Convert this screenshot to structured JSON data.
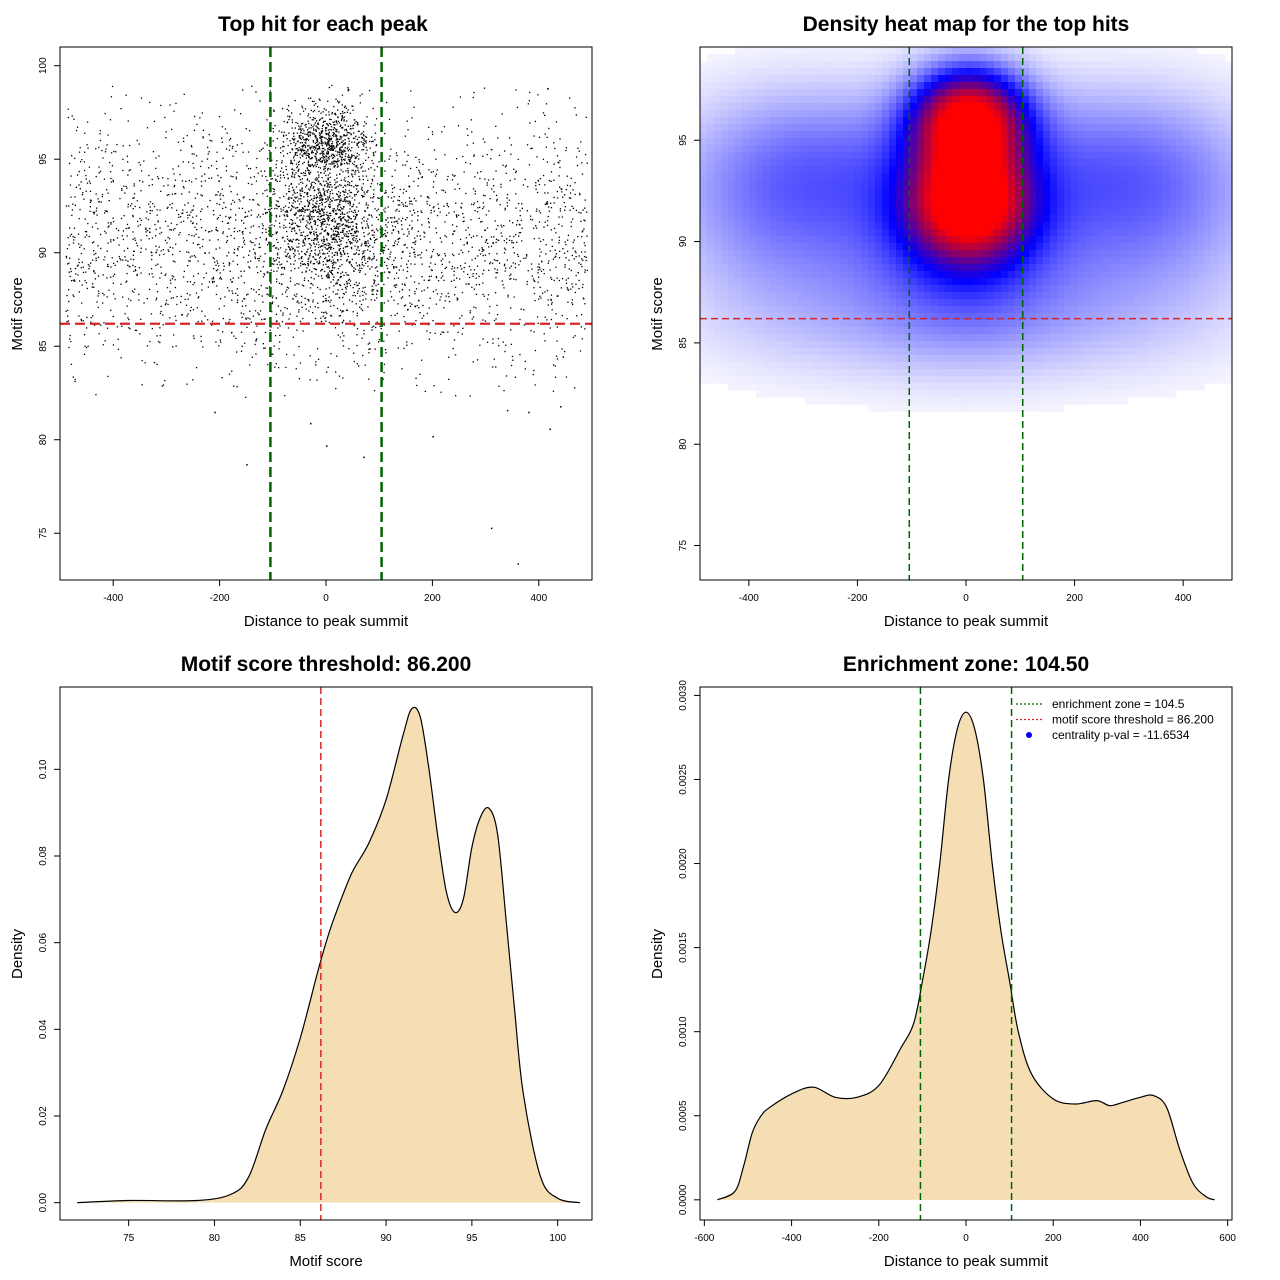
{
  "colors": {
    "threshold": "#d62728",
    "zone": "#006400",
    "fill": "#f5deb3",
    "heat_low": "#ffffff",
    "heat_mid": "#0000ff",
    "heat_high": "#ff0000",
    "legend_point": "#0000ff"
  },
  "chart_data": [
    {
      "type": "scatter",
      "title": "Top hit for each peak",
      "xlabel": "Distance to peak summit",
      "ylabel": "Motif score",
      "xlim": [
        -500,
        500
      ],
      "ylim": [
        72.5,
        101
      ],
      "xticks": [
        -400,
        -200,
        0,
        200,
        400
      ],
      "yticks": [
        75,
        80,
        85,
        90,
        95,
        100
      ],
      "threshold": 86.2,
      "enrichment_zone": [
        -104.5,
        104.5
      ],
      "point_clouds": [
        {
          "name": "background",
          "n": 2600,
          "x_range": [
            -490,
            490
          ],
          "y_mean": 90.5,
          "y_sd": 3.4
        },
        {
          "name": "central-cluster-high",
          "n": 750,
          "x_mean": 0,
          "x_sd": 40,
          "y_mean": 95.8,
          "y_sd": 1.0
        },
        {
          "name": "central-cluster-mid",
          "n": 650,
          "x_mean": 0,
          "x_sd": 45,
          "y_mean": 91.8,
          "y_sd": 1.5
        },
        {
          "name": "central-spread",
          "n": 700,
          "x_mean": 0,
          "x_sd": 85,
          "y_mean": 91.0,
          "y_sd": 2.8
        }
      ],
      "outliers": [
        {
          "x": -150,
          "y": 78.7
        },
        {
          "x": 310,
          "y": 75.3
        },
        {
          "x": 360,
          "y": 73.4
        },
        {
          "x": -210,
          "y": 81.5
        },
        {
          "x": 0,
          "y": 79.7
        },
        {
          "x": 70,
          "y": 79.1
        },
        {
          "x": 200,
          "y": 80.2
        },
        {
          "x": 420,
          "y": 80.6
        },
        {
          "x": 440,
          "y": 81.8
        },
        {
          "x": 340,
          "y": 81.6
        },
        {
          "x": 380,
          "y": 81.5
        },
        {
          "x": -30,
          "y": 80.9
        }
      ]
    },
    {
      "type": "heatmap",
      "title": "Density heat map for the top hits",
      "xlabel": "Distance to peak summit",
      "ylabel": "Motif score",
      "xlim": [
        -490,
        490
      ],
      "ylim": [
        73.3,
        99.6
      ],
      "xticks": [
        -400,
        -200,
        0,
        200,
        400
      ],
      "yticks": [
        75,
        80,
        85,
        90,
        95
      ],
      "threshold": 86.2,
      "enrichment_zone": [
        -104.5,
        104.5
      ],
      "density_blobs": [
        {
          "x": 5,
          "y": 96.0,
          "sx": 70,
          "sy": 1.7,
          "w": 1.0
        },
        {
          "x": 5,
          "y": 92.0,
          "sx": 70,
          "sy": 1.8,
          "w": 0.9
        },
        {
          "x": 0,
          "y": 90.5,
          "sx": 120,
          "sy": 3.0,
          "w": 0.35
        },
        {
          "x": -320,
          "y": 91.5,
          "sx": 160,
          "sy": 3.3,
          "w": 0.22
        },
        {
          "x": 320,
          "y": 91.5,
          "sx": 160,
          "sy": 3.3,
          "w": 0.22
        },
        {
          "x": -250,
          "y": 94.5,
          "sx": 180,
          "sy": 2.5,
          "w": 0.12
        },
        {
          "x": 250,
          "y": 94.5,
          "sx": 180,
          "sy": 2.5,
          "w": 0.12
        },
        {
          "x": 0,
          "y": 86.0,
          "sx": 300,
          "sy": 2.2,
          "w": 0.12
        }
      ]
    },
    {
      "type": "area",
      "title": "Motif score threshold: 86.200",
      "xlabel": "Motif score",
      "ylabel": "Density",
      "xlim": [
        71,
        102
      ],
      "ylim": [
        -0.004,
        0.119
      ],
      "xticks": [
        75,
        80,
        85,
        90,
        95,
        100
      ],
      "yticks": [
        0.0,
        0.02,
        0.04,
        0.06,
        0.08,
        0.1
      ],
      "ytick_labels": [
        "0.00",
        "0.02",
        "0.04",
        "0.06",
        "0.08",
        "0.10"
      ],
      "threshold": 86.2,
      "x": [
        72,
        75,
        79,
        81,
        82,
        83,
        84,
        85,
        86,
        86.5,
        87,
        88,
        89,
        90,
        91,
        91.5,
        92,
        92.5,
        93,
        93.5,
        94,
        94.5,
        95,
        95.5,
        96,
        96.5,
        97,
        97.5,
        98,
        99,
        100,
        101.3
      ],
      "y": [
        0.0,
        0.0005,
        0.0005,
        0.002,
        0.006,
        0.017,
        0.026,
        0.038,
        0.053,
        0.06,
        0.066,
        0.076,
        0.083,
        0.093,
        0.108,
        0.114,
        0.112,
        0.1,
        0.085,
        0.072,
        0.067,
        0.07,
        0.082,
        0.089,
        0.091,
        0.085,
        0.065,
        0.044,
        0.025,
        0.006,
        0.001,
        0.0
      ]
    },
    {
      "type": "area",
      "title": "Enrichment zone: 104.50",
      "xlabel": "Distance to peak summit",
      "ylabel": "Density",
      "xlim": [
        -610,
        610
      ],
      "ylim": [
        -0.00012,
        0.00305
      ],
      "xticks": [
        -600,
        -400,
        -200,
        0,
        200,
        400,
        600
      ],
      "yticks": [
        0.0,
        0.0005,
        0.001,
        0.0015,
        0.002,
        0.0025,
        0.003
      ],
      "ytick_labels": [
        "0.0000",
        "0.0005",
        "0.0010",
        "0.0015",
        "0.0020",
        "0.0025",
        "0.0030"
      ],
      "enrichment_zone": [
        -104.5,
        104.5
      ],
      "x": [
        -570,
        -530,
        -510,
        -490,
        -470,
        -450,
        -400,
        -350,
        -300,
        -250,
        -200,
        -150,
        -120,
        -100,
        -80,
        -60,
        -40,
        -20,
        0,
        20,
        40,
        60,
        80,
        100,
        120,
        150,
        200,
        250,
        300,
        330,
        360,
        400,
        430,
        460,
        490,
        520,
        550,
        570
      ],
      "y": [
        0.0,
        5e-05,
        0.0002,
        0.0004,
        0.0005,
        0.00055,
        0.00063,
        0.00067,
        0.00061,
        0.00061,
        0.00068,
        0.0009,
        0.00105,
        0.0013,
        0.0016,
        0.002,
        0.0025,
        0.0028,
        0.0029,
        0.0028,
        0.0025,
        0.002,
        0.0016,
        0.0013,
        0.001,
        0.00075,
        0.0006,
        0.00057,
        0.00059,
        0.00056,
        0.00058,
        0.00061,
        0.00062,
        0.00055,
        0.0003,
        0.0001,
        2e-05,
        0.0
      ],
      "legend": [
        {
          "label": "enrichment zone = 104.5",
          "style": "dotted-line",
          "color": "#006400"
        },
        {
          "label": "motif score threshold = 86.200",
          "style": "dotted-line",
          "color": "#d62728"
        },
        {
          "label": "centrality p-val = -11.6534",
          "style": "point",
          "color": "#0000ff"
        }
      ]
    }
  ]
}
